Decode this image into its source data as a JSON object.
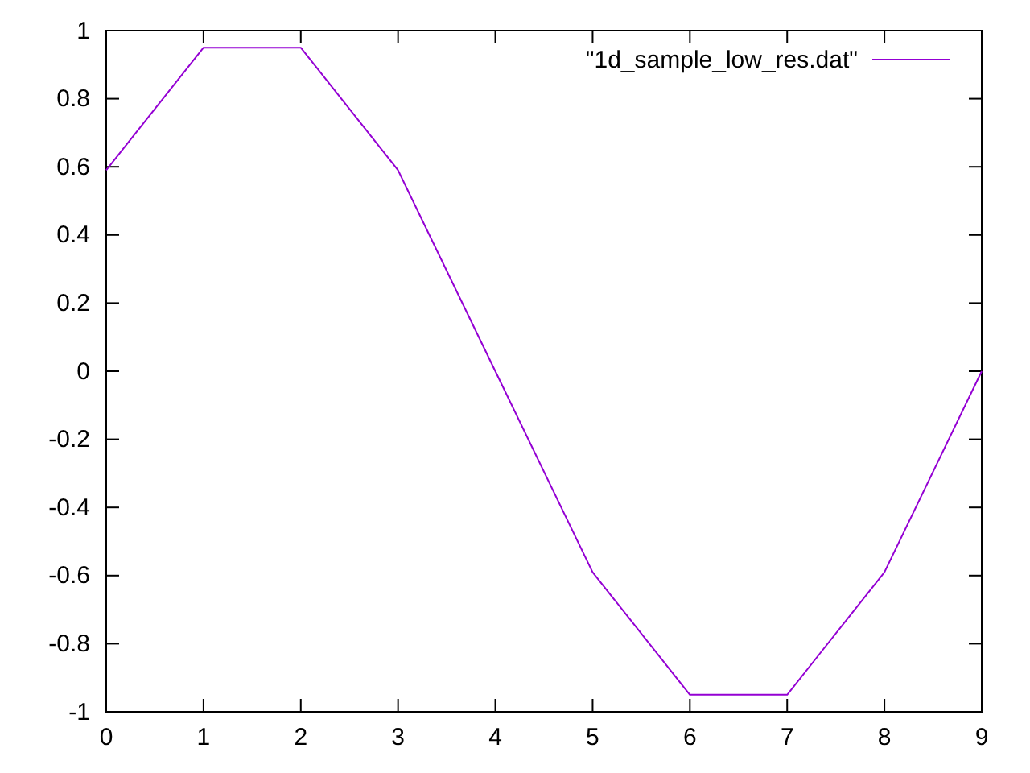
{
  "chart_data": {
    "type": "line",
    "x": [
      0,
      1,
      2,
      3,
      4,
      5,
      6,
      7,
      8,
      9
    ],
    "series": [
      {
        "name": "\"1d_sample_low_res.dat\"",
        "color": "#9400d3",
        "values": [
          0.59,
          0.95,
          0.95,
          0.59,
          0,
          -0.59,
          -0.95,
          -0.95,
          -0.59,
          0
        ]
      }
    ],
    "xlim": [
      0,
      9
    ],
    "xticks": [
      0,
      1,
      2,
      3,
      4,
      5,
      6,
      7,
      8,
      9
    ],
    "ylim": [
      -1,
      1
    ],
    "yticks": [
      -1,
      -0.8,
      -0.6,
      -0.4,
      -0.2,
      0,
      0.2,
      0.4,
      0.6,
      0.8,
      1
    ],
    "grid": false,
    "legend": "top right",
    "marker": "none",
    "line_style": "solid"
  }
}
